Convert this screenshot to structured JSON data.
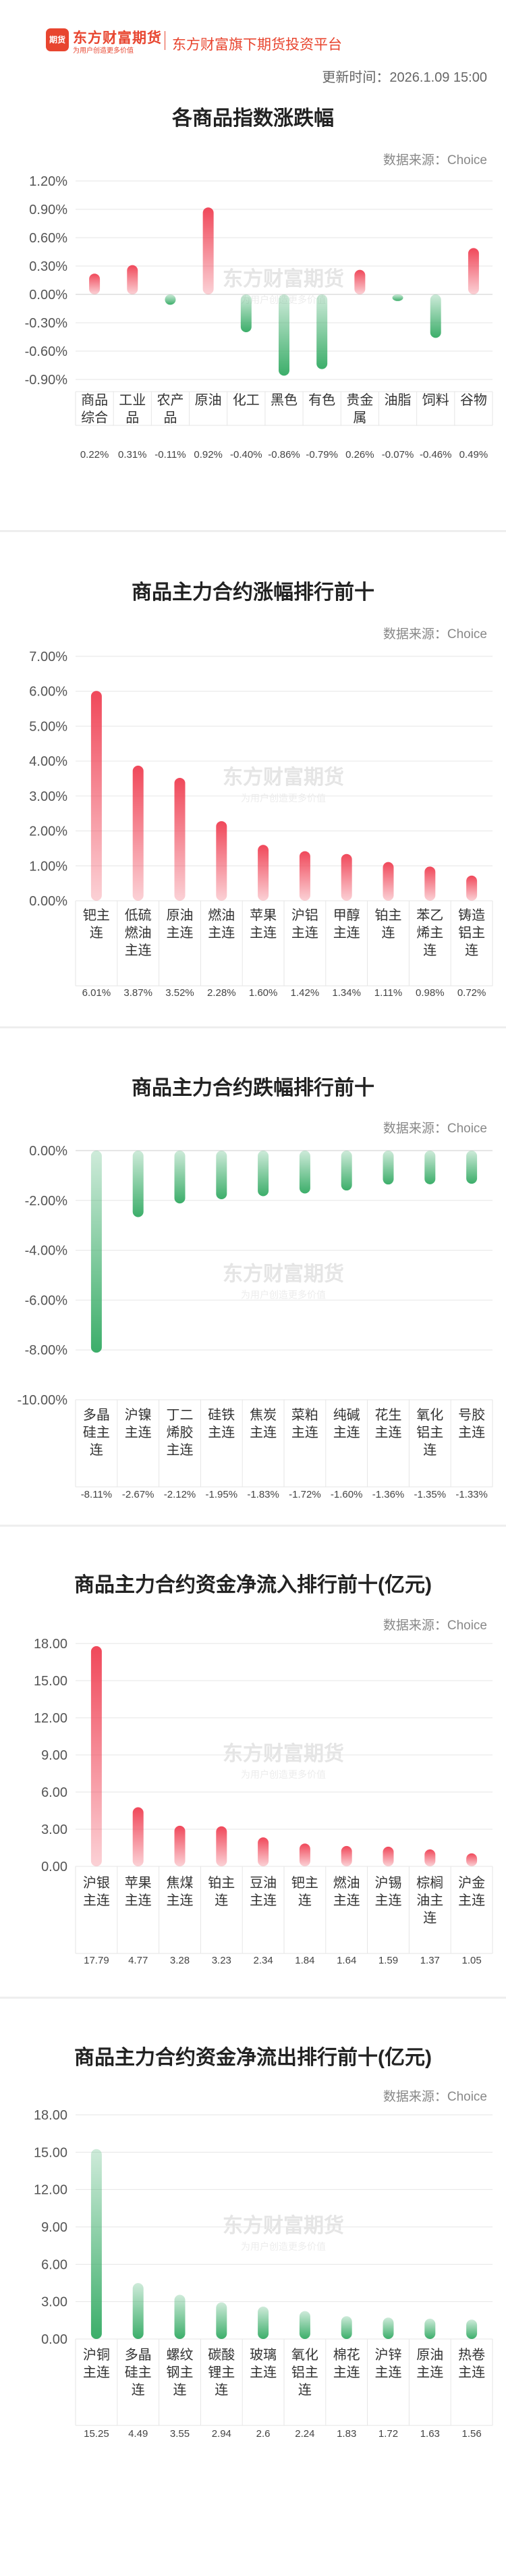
{
  "header": {
    "badge": "期货",
    "brand_name": "东方财富期货",
    "slogan": "为用户创造更多价值",
    "platform": "东方财富旗下期货投资平台",
    "update_time": "更新时间：2026.1.09 15:00"
  },
  "watermark": {
    "main": "东方财富期货",
    "sub": "为用户创造更多价值"
  },
  "colors": {
    "up": "#f0485a",
    "down": "#3cae6a"
  },
  "sections": [
    {
      "title": "各商品指数涨跌幅",
      "source": "数据来源：Choice"
    },
    {
      "title": "商品主力合约涨幅排行前十",
      "source": "数据来源：Choice"
    },
    {
      "title": "商品主力合约跌幅排行前十",
      "source": "数据来源：Choice"
    },
    {
      "title": "商品主力合约资金净流入排行前十(亿元)",
      "source": "数据来源：Choice"
    },
    {
      "title": "商品主力合约资金净流出排行前十(亿元)",
      "source": "数据来源：Choice"
    }
  ],
  "chart_data": [
    {
      "type": "bar",
      "title": "各商品指数涨跌幅",
      "categories": [
        "商品\n综合",
        "工业\n品",
        "农产\n品",
        "原油",
        "化工",
        "黑色",
        "有色",
        "贵金\n属",
        "油脂",
        "饲料",
        "谷物"
      ],
      "values": [
        0.22,
        0.31,
        -0.11,
        0.92,
        -0.4,
        -0.86,
        -0.79,
        0.26,
        -0.07,
        -0.46,
        0.49
      ],
      "value_labels": [
        "0.22%",
        "0.31%",
        "-0.11%",
        "0.92%",
        "-0.40%",
        "-0.86%",
        "-0.79%",
        "0.26%",
        "-0.07%",
        "-0.46%",
        "0.49%"
      ],
      "yticks": [
        "1.20%",
        "0.90%",
        "0.60%",
        "0.30%",
        "0.00%",
        "-0.30%",
        "-0.60%",
        "-0.90%"
      ],
      "ylim": [
        -0.9,
        1.2
      ],
      "grid": true,
      "legend": "none"
    },
    {
      "type": "bar",
      "title": "商品主力合约涨幅排行前十",
      "categories": [
        "钯主\n连",
        "低硫\n燃油\n主连",
        "原油\n主连",
        "燃油\n主连",
        "苹果\n主连",
        "沪铝\n主连",
        "甲醇\n主连",
        "铂主\n连",
        "苯乙\n烯主\n连",
        "铸造\n铝主\n连"
      ],
      "values": [
        6.01,
        3.87,
        3.52,
        2.28,
        1.6,
        1.42,
        1.34,
        1.11,
        0.98,
        0.72
      ],
      "value_labels": [
        "6.01%",
        "3.87%",
        "3.52%",
        "2.28%",
        "1.60%",
        "1.42%",
        "1.34%",
        "1.11%",
        "0.98%",
        "0.72%"
      ],
      "yticks": [
        "7.00%",
        "6.00%",
        "5.00%",
        "4.00%",
        "3.00%",
        "2.00%",
        "1.00%",
        "0.00%"
      ],
      "ylim": [
        0,
        7
      ],
      "grid": true,
      "legend": "none"
    },
    {
      "type": "bar",
      "title": "商品主力合约跌幅排行前十",
      "categories": [
        "多晶\n硅主\n连",
        "沪镍\n主连",
        "丁二\n烯胶\n主连",
        "硅铁\n主连",
        "焦炭\n主连",
        "菜粕\n主连",
        "纯碱\n主连",
        "花生\n主连",
        "氧化\n铝主\n连",
        "号胶\n主连"
      ],
      "values": [
        -8.11,
        -2.67,
        -2.12,
        -1.95,
        -1.83,
        -1.72,
        -1.6,
        -1.36,
        -1.35,
        -1.33
      ],
      "value_labels": [
        "-8.11%",
        "-2.67%",
        "-2.12%",
        "-1.95%",
        "-1.83%",
        "-1.72%",
        "-1.60%",
        "-1.36%",
        "-1.35%",
        "-1.33%"
      ],
      "yticks": [
        "0.00%",
        "-2.00%",
        "-4.00%",
        "-6.00%",
        "-8.00%",
        "-10.00%"
      ],
      "ylim": [
        -10,
        0
      ],
      "grid": true,
      "legend": "none"
    },
    {
      "type": "bar",
      "title": "商品主力合约资金净流入排行前十(亿元)",
      "categories": [
        "沪银\n主连",
        "苹果\n主连",
        "焦煤\n主连",
        "铂主\n连",
        "豆油\n主连",
        "钯主\n连",
        "燃油\n主连",
        "沪锡\n主连",
        "棕榈\n油主\n连",
        "沪金\n主连"
      ],
      "values": [
        17.79,
        4.77,
        3.28,
        3.23,
        2.34,
        1.84,
        1.64,
        1.59,
        1.37,
        1.05
      ],
      "value_labels": [
        "17.79",
        "4.77",
        "3.28",
        "3.23",
        "2.34",
        "1.84",
        "1.64",
        "1.59",
        "1.37",
        "1.05"
      ],
      "yticks": [
        "18.00",
        "15.00",
        "12.00",
        "9.00",
        "6.00",
        "3.00",
        "0.00"
      ],
      "ylim": [
        0,
        18
      ],
      "grid": true,
      "legend": "none"
    },
    {
      "type": "bar",
      "title": "商品主力合约资金净流出排行前十(亿元)",
      "categories": [
        "沪铜\n主连",
        "多晶\n硅主\n连",
        "螺纹\n钢主\n连",
        "碳酸\n锂主\n连",
        "玻璃\n主连",
        "氧化\n铝主\n连",
        "棉花\n主连",
        "沪锌\n主连",
        "原油\n主连",
        "热卷\n主连"
      ],
      "values": [
        15.25,
        4.49,
        3.55,
        2.94,
        2.6,
        2.24,
        1.83,
        1.72,
        1.63,
        1.56
      ],
      "value_labels": [
        "15.25",
        "4.49",
        "3.55",
        "2.94",
        "2.6",
        "2.24",
        "1.83",
        "1.72",
        "1.63",
        "1.56"
      ],
      "yticks": [
        "18.00",
        "15.00",
        "12.00",
        "9.00",
        "6.00",
        "3.00",
        "0.00"
      ],
      "ylim": [
        0,
        18
      ],
      "grid": true,
      "legend": "none"
    }
  ]
}
